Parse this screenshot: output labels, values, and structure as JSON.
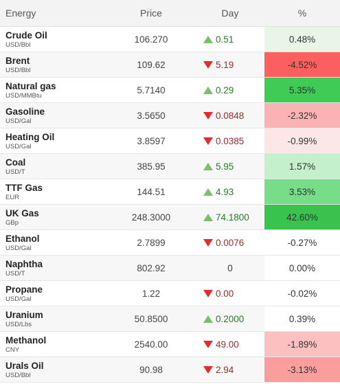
{
  "header": {
    "name": "Energy",
    "price": "Price",
    "day": "Day",
    "pct": "%"
  },
  "rows": [
    {
      "name": "Crude Oil",
      "unit": "USD/Bbl",
      "price": "106.270",
      "day": "0.51",
      "dir": "up",
      "pct": "0.48%",
      "pct_color": "#e9f6e7"
    },
    {
      "name": "Brent",
      "unit": "USD/Bbl",
      "price": "109.62",
      "day": "5.19",
      "dir": "down",
      "pct": "-4.52%",
      "pct_color": "#fb5f5f"
    },
    {
      "name": "Natural gas",
      "unit": "USD/MMBtu",
      "price": "5.7140",
      "day": "0.29",
      "dir": "up",
      "pct": "5.35%",
      "pct_color": "#3ecc56"
    },
    {
      "name": "Gasoline",
      "unit": "USD/Gal",
      "price": "3.5650",
      "day": "0.0848",
      "dir": "down",
      "pct": "-2.32%",
      "pct_color": "#fbb2b2"
    },
    {
      "name": "Heating Oil",
      "unit": "USD/Gal",
      "price": "3.8597",
      "day": "0.0385",
      "dir": "down",
      "pct": "-0.99%",
      "pct_color": "#fde6e6"
    },
    {
      "name": "Coal",
      "unit": "USD/T",
      "price": "385.95",
      "day": "5.95",
      "dir": "up",
      "pct": "1.57%",
      "pct_color": "#c4f0cb"
    },
    {
      "name": "TTF Gas",
      "unit": "EUR",
      "price": "144.51",
      "day": "4.93",
      "dir": "up",
      "pct": "3.53%",
      "pct_color": "#77dd89"
    },
    {
      "name": "UK Gas",
      "unit": "GBp",
      "price": "248.3000",
      "day": "74.1800",
      "dir": "up",
      "pct": "42.60%",
      "pct_color": "#38c34f"
    },
    {
      "name": "Ethanol",
      "unit": "USD/Gal",
      "price": "2.7899",
      "day": "0.0076",
      "dir": "down",
      "pct": "-0.27%",
      "pct_color": "#ffffff"
    },
    {
      "name": "Naphtha",
      "unit": "USD/T",
      "price": "802.92",
      "day": "0",
      "dir": "flat",
      "pct": "0.00%",
      "pct_color": "#ffffff"
    },
    {
      "name": "Propane",
      "unit": "USD/Gal",
      "price": "1.22",
      "day": "0.00",
      "dir": "down",
      "pct": "-0.02%",
      "pct_color": "#ffffff"
    },
    {
      "name": "Uranium",
      "unit": "USD/Lbs",
      "price": "50.8500",
      "day": "0.2000",
      "dir": "up",
      "pct": "0.39%",
      "pct_color": "#ffffff"
    },
    {
      "name": "Methanol",
      "unit": "CNY",
      "price": "2540.00",
      "day": "49.00",
      "dir": "down",
      "pct": "-1.89%",
      "pct_color": "#fcc0c0"
    },
    {
      "name": "Urals Oil",
      "unit": "USD/Bbl",
      "price": "90.98",
      "day": "2.94",
      "dir": "down",
      "pct": "-3.13%",
      "pct_color": "#fa9d9d"
    }
  ]
}
